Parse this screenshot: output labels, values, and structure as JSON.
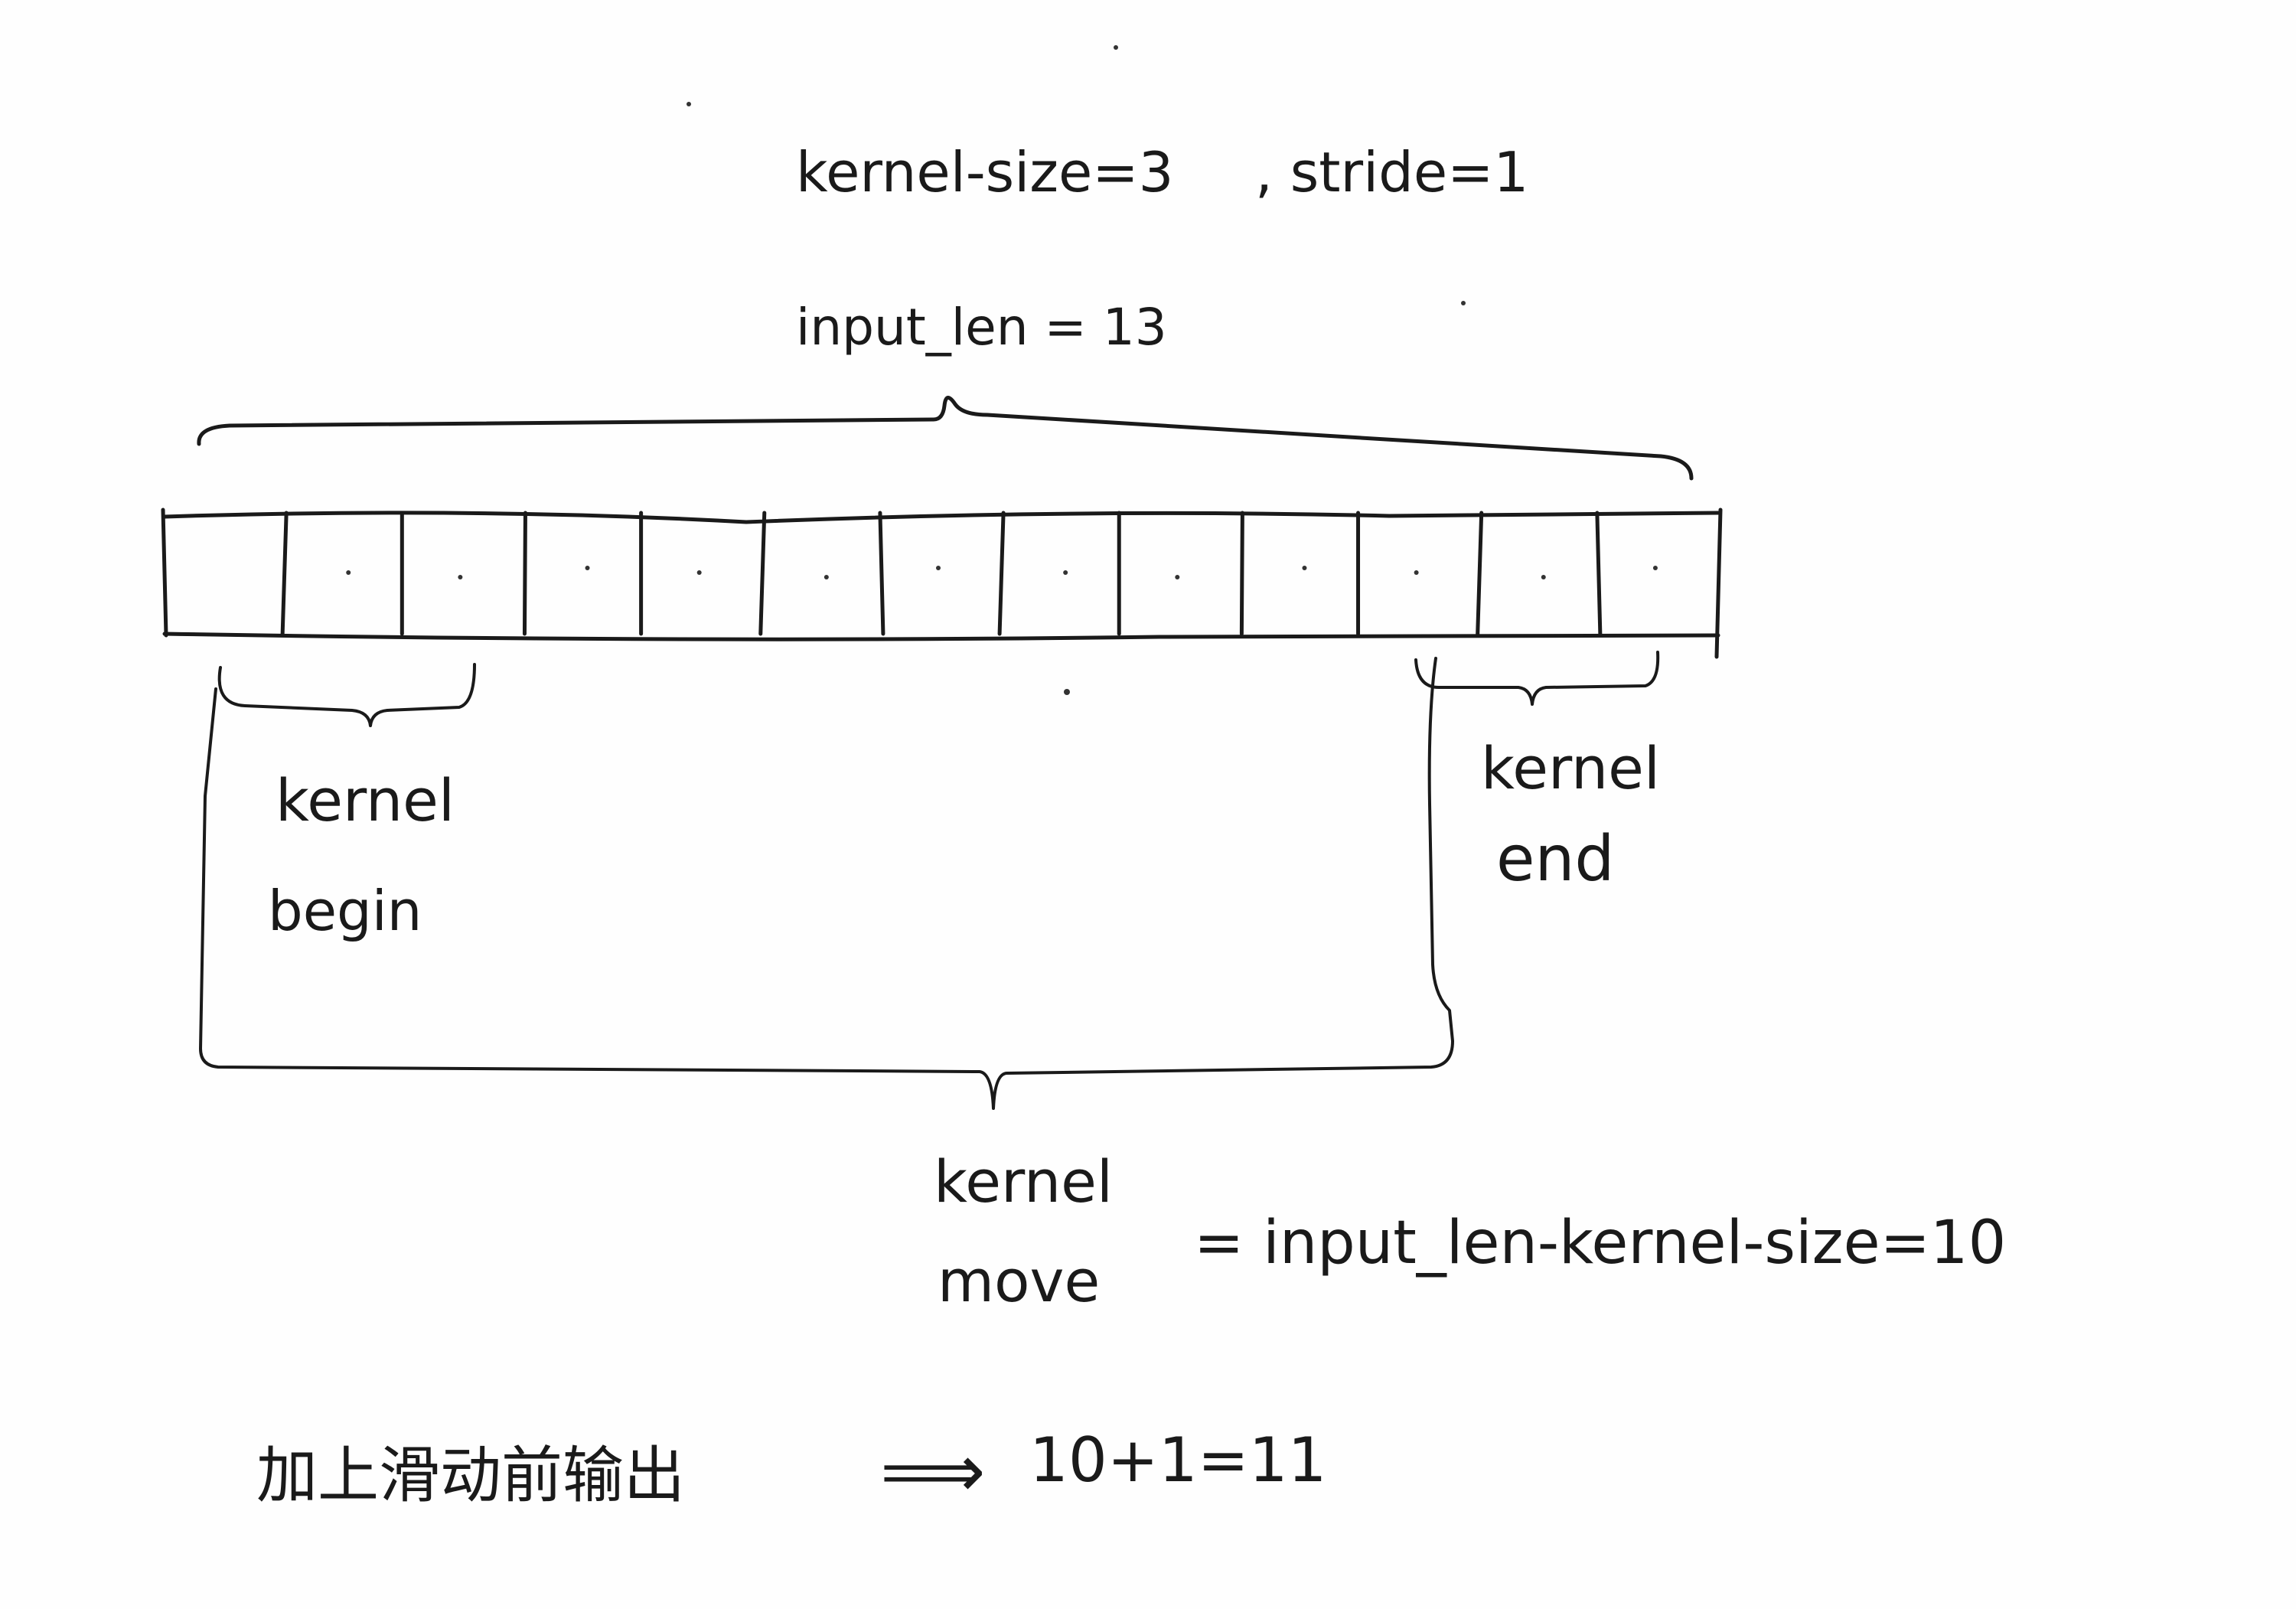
{
  "header": {
    "kernel_size": "kernel-size=3",
    "stride": ", stride=1"
  },
  "input": {
    "label": "input_len = 13",
    "cell_count": 13
  },
  "kernel_begin": {
    "line1": "kernel",
    "line2": "begin"
  },
  "kernel_end": {
    "line1": "kernel",
    "line2": "end"
  },
  "kernel_move": {
    "line1": "kernel",
    "line2": "move",
    "equation": "=   input_len-kernel-size=10"
  },
  "result": {
    "chinese": "加上滑动前输出",
    "arrow": "⟹",
    "equation": "10+1=11"
  }
}
